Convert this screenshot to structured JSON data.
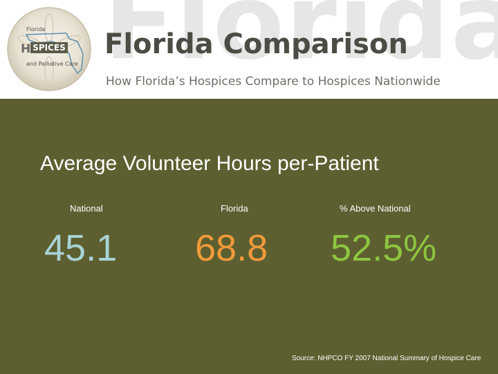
{
  "header": {
    "watermark": "Florida",
    "title": "Florida Comparison",
    "subtitle": "How Florida’s Hospices Compare to Hospices Nationwide",
    "logo": {
      "line1": "Florida",
      "line2_h": "H",
      "line2_rest": "SPICES",
      "line3": "and Palliative Care"
    }
  },
  "main": {
    "heading": "Average Volunteer Hours per-Patient",
    "stats": [
      {
        "label": "National",
        "value": "45.1",
        "color": "#a9d3d6"
      },
      {
        "label": "Florida",
        "value": "68.8",
        "color": "#f29a3b"
      },
      {
        "label": "% Above National",
        "value": "52.5%",
        "color": "#8cc63f"
      }
    ],
    "source": "Source:  NHPCO FY 2007 National Summary of Hospice Care",
    "background_color": "#5d5f30"
  }
}
